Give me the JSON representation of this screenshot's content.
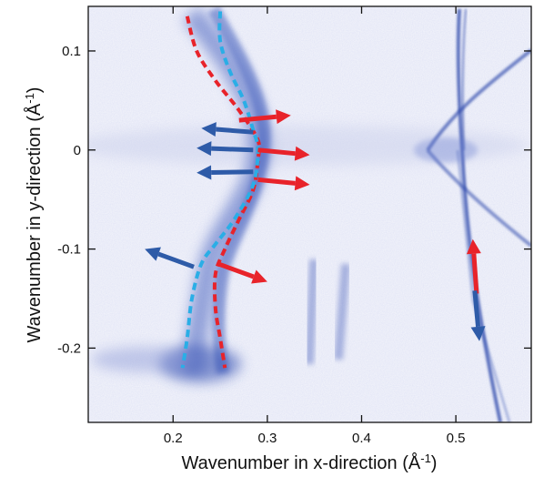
{
  "chart_data": {
    "type": "heatmap",
    "title": "",
    "xlabel": "Wavenumber in x-direction (Å⁻¹)",
    "ylabel": "Wavenumber in y-direction (Å⁻¹)",
    "xlabel_parts": {
      "main": "Wavenumber in x-direction (",
      "unit": "Å",
      "sup": "-1",
      "close": ")"
    },
    "ylabel_parts": {
      "main": "Wavenumber in y-direction (",
      "unit": "Å",
      "sup": "-1",
      "close": ")"
    },
    "xlim": [
      0.11,
      0.58
    ],
    "ylim": [
      -0.275,
      0.145
    ],
    "xticks": [
      0.2,
      0.3,
      0.4,
      0.5
    ],
    "xtick_labels": [
      "0.2",
      "0.3",
      "0.4",
      "0.5"
    ],
    "yticks": [
      0.1,
      0,
      -0.1,
      -0.2
    ],
    "ytick_labels": [
      "0.1",
      "0",
      "-0.1",
      "-0.2"
    ],
    "grid": false,
    "colormap": "white to blue intensity",
    "colors": {
      "intensity": "#2f4fb3",
      "red_dashed": "#e8232a",
      "cyan_dashed": "#2aaee6",
      "blue_arrow": "#2e5ba8",
      "red_arrow": "#e8232a"
    },
    "dashed_curves": [
      {
        "color": "red",
        "points": [
          [
            0.215,
            0.135
          ],
          [
            0.225,
            0.1
          ],
          [
            0.245,
            0.07
          ],
          [
            0.27,
            0.04
          ],
          [
            0.29,
            0.01
          ],
          [
            0.29,
            -0.01
          ],
          [
            0.285,
            -0.04
          ],
          [
            0.27,
            -0.07
          ],
          [
            0.255,
            -0.1
          ],
          [
            0.245,
            -0.125
          ],
          [
            0.245,
            -0.16
          ],
          [
            0.25,
            -0.19
          ],
          [
            0.255,
            -0.22
          ]
        ]
      },
      {
        "color": "cyan",
        "points": [
          [
            0.25,
            0.14
          ],
          [
            0.25,
            0.11
          ],
          [
            0.26,
            0.08
          ],
          [
            0.275,
            0.05
          ],
          [
            0.285,
            0.02
          ],
          [
            0.29,
            0.0
          ],
          [
            0.285,
            -0.035
          ],
          [
            0.265,
            -0.07
          ],
          [
            0.245,
            -0.095
          ],
          [
            0.23,
            -0.115
          ],
          [
            0.22,
            -0.15
          ],
          [
            0.215,
            -0.19
          ],
          [
            0.21,
            -0.22
          ]
        ]
      }
    ],
    "arrows": [
      {
        "color": "blue",
        "from": [
          0.285,
          0.018
        ],
        "to": [
          0.23,
          0.022
        ]
      },
      {
        "color": "blue",
        "from": [
          0.285,
          0.0
        ],
        "to": [
          0.225,
          0.002
        ]
      },
      {
        "color": "blue",
        "from": [
          0.285,
          -0.022
        ],
        "to": [
          0.225,
          -0.023
        ]
      },
      {
        "color": "blue",
        "from": [
          0.222,
          -0.118
        ],
        "to": [
          0.17,
          -0.1
        ]
      },
      {
        "color": "red",
        "from": [
          0.27,
          0.03
        ],
        "to": [
          0.325,
          0.035
        ]
      },
      {
        "color": "red",
        "from": [
          0.29,
          0.0
        ],
        "to": [
          0.345,
          -0.005
        ]
      },
      {
        "color": "red",
        "from": [
          0.29,
          -0.03
        ],
        "to": [
          0.345,
          -0.035
        ]
      },
      {
        "color": "red",
        "from": [
          0.248,
          -0.115
        ],
        "to": [
          0.3,
          -0.133
        ]
      },
      {
        "color": "red",
        "from": [
          0.522,
          -0.145
        ],
        "to": [
          0.518,
          -0.09
        ]
      },
      {
        "color": "blue",
        "from": [
          0.52,
          -0.142
        ],
        "to": [
          0.525,
          -0.193
        ]
      }
    ]
  }
}
